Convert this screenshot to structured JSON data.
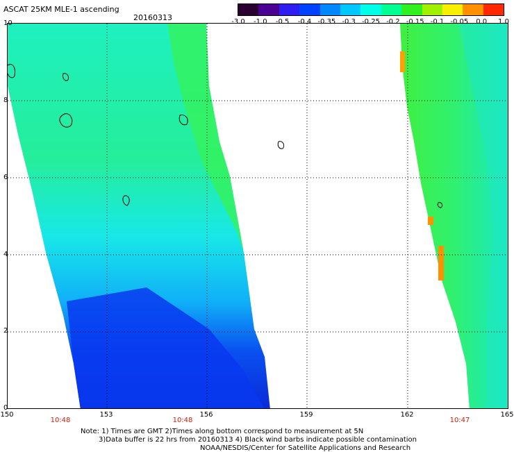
{
  "header": {
    "title": "ASCAT 25KM MLE-1 ascending",
    "date": "20160313"
  },
  "colorbar": {
    "labels": [
      "-3.0",
      "-1.0",
      "-0.5",
      "-0.4",
      "-0.35",
      "-0.3",
      "-0.25",
      "-0.2",
      "-0.15",
      "-0.1",
      "-0.05",
      "0.0",
      "1.0"
    ],
    "colors": [
      "#2a0030",
      "#4a0090",
      "#2d1df0",
      "#0040ff",
      "#0088ff",
      "#00c8ff",
      "#00ffe8",
      "#00ff90",
      "#30f020",
      "#a0f000",
      "#f8f000",
      "#ff9000",
      "#ff2800"
    ]
  },
  "map": {
    "lat_labels": [
      "0",
      "2",
      "4",
      "6",
      "8",
      "10"
    ],
    "lon_labels": [
      "150",
      "153",
      "156",
      "159",
      "162",
      "165"
    ],
    "time_labels": [
      "10:48",
      "10:48",
      "10:47"
    ],
    "contamination_note": "Black wind barbs indicate possible contamination"
  },
  "footer": {
    "note_line1": "Note: 1) Times are GMT 2)Times along bottom correspond to measurement at 5N",
    "note_line2": "3)Data buffer is 22 hrs from 20160313 4) Black wind barbs indicate possible contamination",
    "credit": "NOAA/NESDIS/Center for Satellite Applications and Research"
  }
}
